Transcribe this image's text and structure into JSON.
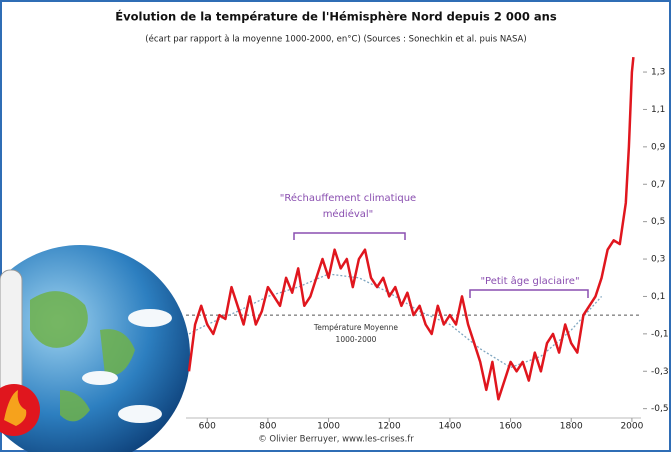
{
  "chart_data": {
    "type": "line",
    "title": "Évolution de la température de l'Hémisphère Nord depuis 2 000 ans",
    "subtitle": "(écart par rapport à la moyenne 1000-2000, en°C) (Sources : Sonechkin et al. puis NASA)",
    "xlim": [
      530,
      2030
    ],
    "xticks": [
      600,
      800,
      1000,
      1200,
      1400,
      1600,
      1800,
      2000
    ],
    "ylim": [
      -0.55,
      1.45
    ],
    "yticks": [
      {
        "value": -0.5,
        "label": "-0,5"
      },
      {
        "value": -0.3,
        "label": "-0,3"
      },
      {
        "value": -0.1,
        "label": "-0,1"
      },
      {
        "value": 0.1,
        "label": "0,1"
      },
      {
        "value": 0.3,
        "label": "0,3"
      },
      {
        "value": 0.5,
        "label": "0,5"
      },
      {
        "value": 0.7,
        "label": "0,7"
      },
      {
        "value": 0.9,
        "label": "0,9"
      },
      {
        "value": 1.1,
        "label": "1,1"
      },
      {
        "value": 1.3,
        "label": "1,3"
      }
    ],
    "reference_line": 0,
    "series": [
      {
        "color": "#e0161e",
        "x": [
          540,
          560,
          580,
          600,
          620,
          640,
          660,
          680,
          700,
          720,
          740,
          760,
          780,
          800,
          820,
          840,
          860,
          880,
          900,
          920,
          940,
          960,
          980,
          1000,
          1020,
          1040,
          1060,
          1080,
          1100,
          1120,
          1140,
          1160,
          1180,
          1200,
          1220,
          1240,
          1260,
          1280,
          1300,
          1320,
          1340,
          1360,
          1380,
          1400,
          1420,
          1440,
          1460,
          1480,
          1500,
          1520,
          1540,
          1560,
          1580,
          1600,
          1620,
          1640,
          1660,
          1680,
          1700,
          1720,
          1740,
          1760,
          1780,
          1800,
          1820,
          1840,
          1860,
          1880,
          1900,
          1920,
          1940,
          1960,
          1980,
          1990,
          2000,
          2005
        ],
        "values": [
          -0.3,
          -0.05,
          0.05,
          -0.05,
          -0.1,
          0.0,
          -0.02,
          0.15,
          0.05,
          -0.05,
          0.1,
          -0.05,
          0.02,
          0.15,
          0.1,
          0.05,
          0.2,
          0.12,
          0.25,
          0.05,
          0.1,
          0.2,
          0.3,
          0.2,
          0.35,
          0.25,
          0.3,
          0.15,
          0.3,
          0.35,
          0.2,
          0.15,
          0.2,
          0.1,
          0.15,
          0.05,
          0.12,
          0.0,
          0.05,
          -0.05,
          -0.1,
          0.05,
          -0.05,
          0.0,
          -0.05,
          0.1,
          -0.05,
          -0.15,
          -0.25,
          -0.4,
          -0.25,
          -0.45,
          -0.35,
          -0.25,
          -0.3,
          -0.25,
          -0.35,
          -0.2,
          -0.3,
          -0.15,
          -0.1,
          -0.2,
          -0.05,
          -0.15,
          -0.2,
          0.0,
          0.05,
          0.1,
          0.2,
          0.35,
          0.4,
          0.38,
          0.6,
          0.9,
          1.3,
          1.38
        ]
      },
      {
        "color": "#7fa6c0",
        "x": [
          540,
          600,
          700,
          800,
          900,
          1000,
          1100,
          1200,
          1300,
          1400,
          1500,
          1600,
          1700,
          1800,
          1900
        ],
        "values": [
          -0.1,
          -0.05,
          0.02,
          0.1,
          0.15,
          0.22,
          0.2,
          0.12,
          0.02,
          -0.05,
          -0.18,
          -0.28,
          -0.22,
          -0.08,
          0.1
        ]
      }
    ],
    "annotations": {
      "medieval": [
        "\"Réchauffement climatique",
        "médiéval\""
      ],
      "little_ice_age": "\"Petit âge glaciaire\"",
      "mean_label": [
        "Température Moyenne",
        "1000-2000"
      ]
    },
    "credit": "© Olivier Berruyer, www.les-crises.fr"
  }
}
